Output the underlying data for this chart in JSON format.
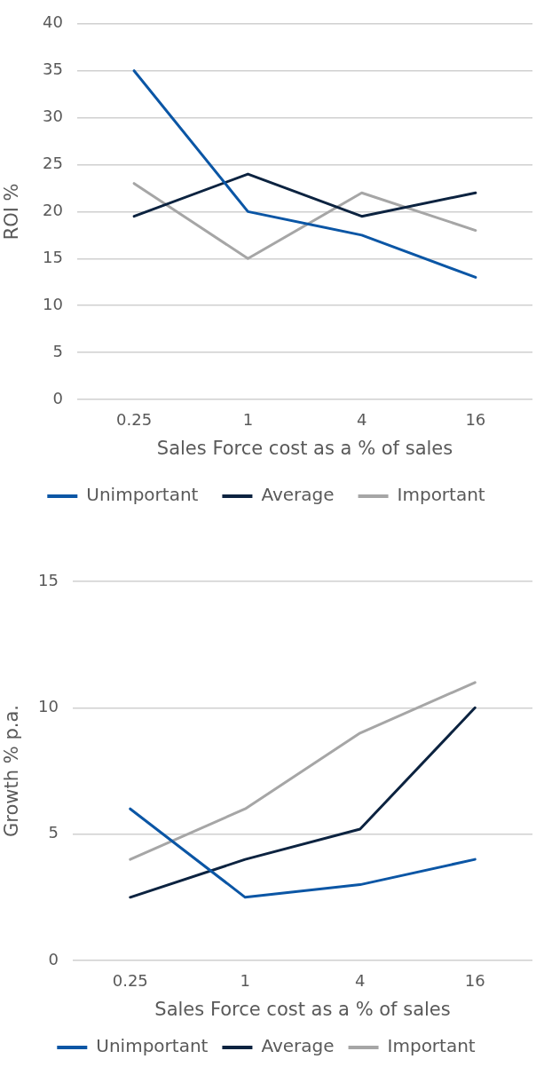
{
  "chart_data": [
    {
      "type": "line",
      "ylabel": "ROI %",
      "xlabel": "Sales Force cost as a % of sales",
      "categories": [
        "0.25",
        "1",
        "4",
        "16"
      ],
      "series": [
        {
          "name": "Unimportant",
          "color": "#0b56a5",
          "values": [
            35,
            20,
            17.5,
            13
          ]
        },
        {
          "name": "Average",
          "color": "#0c2340",
          "values": [
            19.5,
            24,
            19.5,
            22
          ]
        },
        {
          "name": "Important",
          "color": "#a6a6a6",
          "values": [
            23,
            15,
            22,
            18
          ]
        }
      ],
      "ylim": [
        0,
        40
      ],
      "yticks": [
        0,
        5,
        10,
        15,
        20,
        25,
        30,
        35,
        40
      ],
      "grid": "y",
      "legend": "bottom"
    },
    {
      "type": "line",
      "ylabel": "Growth % p.a.",
      "xlabel": "Sales Force cost as a % of sales",
      "categories": [
        "0.25",
        "1",
        "4",
        "16"
      ],
      "series": [
        {
          "name": "Unimportant",
          "color": "#0b56a5",
          "values": [
            6,
            2.5,
            3,
            4
          ]
        },
        {
          "name": "Average",
          "color": "#0c2340",
          "values": [
            2.5,
            4,
            5.2,
            10
          ]
        },
        {
          "name": "Important",
          "color": "#a6a6a6",
          "values": [
            4,
            6,
            9,
            11
          ]
        }
      ],
      "ylim": [
        0,
        15
      ],
      "yticks": [
        0,
        5,
        10,
        15
      ],
      "grid": "y",
      "legend": "bottom"
    }
  ]
}
